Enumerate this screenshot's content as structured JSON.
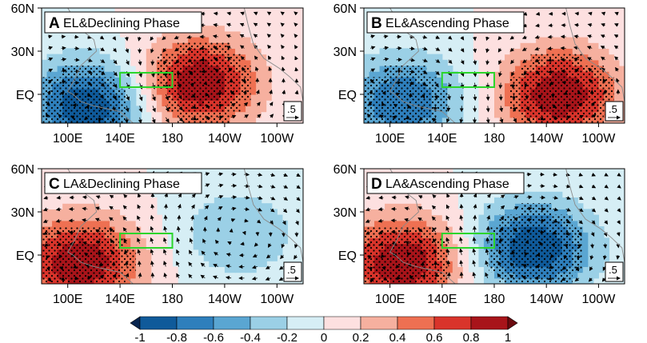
{
  "chart_data": [
    {
      "type": "heatmap",
      "panel": "A",
      "title_letter": "A",
      "title": "EL&Declining Phase",
      "lon_ticks": [
        "100E",
        "140E",
        "180",
        "140W",
        "100W"
      ],
      "lat_ticks": [
        "60N",
        "30N",
        "EQ"
      ],
      "xlim_lon_east": [
        80,
        280
      ],
      "ylim_lat": [
        -20,
        60
      ],
      "box_region": {
        "lon": [
          140,
          180
        ],
        "lat": [
          5,
          15
        ]
      },
      "reference_vector": ".5",
      "features": [
        {
          "sign": "negative",
          "value": -1.0,
          "center_lon": 115,
          "center_lat": -8
        },
        {
          "sign": "positive",
          "value": 1.0,
          "center_lon": 200,
          "center_lat": 8
        }
      ]
    },
    {
      "type": "heatmap",
      "panel": "B",
      "title_letter": "B",
      "title": "EL&Ascending Phase",
      "lon_ticks": [
        "100E",
        "140E",
        "180",
        "140W",
        "100W"
      ],
      "lat_ticks": [
        "60N",
        "30N",
        "EQ"
      ],
      "xlim_lon_east": [
        80,
        280
      ],
      "ylim_lat": [
        -20,
        60
      ],
      "box_region": {
        "lon": [
          140,
          180
        ],
        "lat": [
          5,
          15
        ]
      },
      "reference_vector": ".5",
      "features": [
        {
          "sign": "negative",
          "value": -0.8,
          "center_lon": 110,
          "center_lat": -5
        },
        {
          "sign": "positive",
          "value": 1.0,
          "center_lon": 230,
          "center_lat": 0
        }
      ]
    },
    {
      "type": "heatmap",
      "panel": "C",
      "title_letter": "C",
      "title": "LA&Declining Phase",
      "lon_ticks": [
        "100E",
        "140E",
        "180",
        "140W",
        "100W"
      ],
      "lat_ticks": [
        "60N",
        "30N",
        "EQ"
      ],
      "xlim_lon_east": [
        80,
        280
      ],
      "ylim_lat": [
        -20,
        60
      ],
      "box_region": {
        "lon": [
          140,
          180
        ],
        "lat": [
          5,
          15
        ]
      },
      "reference_vector": ".5",
      "features": [
        {
          "sign": "positive",
          "value": 1.0,
          "center_lon": 110,
          "center_lat": -5
        },
        {
          "sign": "negative",
          "value": -0.4,
          "center_lon": 230,
          "center_lat": 15
        }
      ]
    },
    {
      "type": "heatmap",
      "panel": "D",
      "title_letter": "D",
      "title": "LA&Ascending Phase",
      "lon_ticks": [
        "100E",
        "140E",
        "180",
        "140W",
        "100W"
      ],
      "lat_ticks": [
        "60N",
        "30N",
        "EQ"
      ],
      "xlim_lon_east": [
        80,
        280
      ],
      "ylim_lat": [
        -20,
        60
      ],
      "box_region": {
        "lon": [
          140,
          180
        ],
        "lat": [
          5,
          15
        ]
      },
      "reference_vector": ".5",
      "features": [
        {
          "sign": "positive",
          "value": 1.0,
          "center_lon": 110,
          "center_lat": -5
        },
        {
          "sign": "negative",
          "value": -1.0,
          "center_lon": 210,
          "center_lat": 5
        }
      ]
    }
  ],
  "colorbar": {
    "tick_labels": [
      "-1",
      "-0.8",
      "-0.6",
      "-0.4",
      "-0.2",
      "0",
      "0.2",
      "0.4",
      "0.6",
      "0.8",
      "1"
    ],
    "colors": [
      "#08254f",
      "#0f5a9a",
      "#2e7fbc",
      "#5aa6d2",
      "#9bd0e6",
      "#d6eef5",
      "#fde0e0",
      "#f6b09f",
      "#ee7052",
      "#d9342b",
      "#a8141a",
      "#6b0a0f"
    ]
  },
  "colors": {
    "box": "#2cd52c",
    "stipple": "#000000",
    "vector": "#000000"
  }
}
